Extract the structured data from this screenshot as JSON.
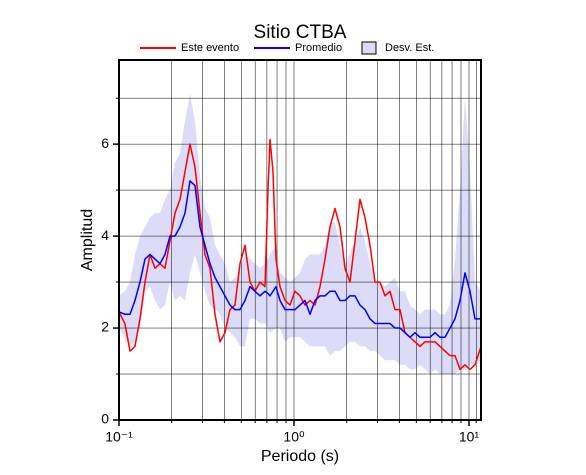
{
  "chart_data": {
    "type": "line",
    "title": "Sitio CTBA",
    "x_label": "Periodo (s)",
    "y_label": "Amplitud",
    "xscale": "log",
    "xlim": [
      0.1,
      11.71
    ],
    "ylim": [
      0,
      7.83
    ],
    "xticks": [
      {
        "value": 0.1,
        "label": "10⁻¹"
      },
      {
        "value": 1,
        "label": "10⁰"
      },
      {
        "value": 10,
        "label": "10¹"
      }
    ],
    "xminor": [
      0.2,
      0.3,
      0.4,
      0.5,
      0.6,
      0.7,
      0.8,
      0.9,
      2,
      3,
      4,
      5,
      6,
      7,
      8,
      9,
      11
    ],
    "yticks": [
      0,
      2,
      4,
      6
    ],
    "yminor": [
      1,
      3,
      5,
      7
    ],
    "grid": true,
    "x": [
      0.1,
      0.108,
      0.1156,
      0.1234,
      0.1318,
      0.1408,
      0.1504,
      0.1606,
      0.1715,
      0.1832,
      0.1956,
      0.2089,
      0.2232,
      0.2383,
      0.2545,
      0.2718,
      0.2903,
      0.31,
      0.3311,
      0.3536,
      0.3776,
      0.4033,
      0.4307,
      0.46,
      0.4913,
      0.5248,
      0.5604,
      0.5985,
      0.6392,
      0.6827,
      0.7103,
      0.7293,
      0.7586,
      0.7892,
      0.8318,
      0.8884,
      0.9487,
      1.013,
      1.082,
      1.156,
      1.234,
      1.318,
      1.408,
      1.504,
      1.606,
      1.715,
      1.832,
      1.956,
      2.089,
      2.232,
      2.383,
      2.545,
      2.718,
      2.903,
      3.1,
      3.311,
      3.536,
      3.776,
      4.033,
      4.307,
      4.6,
      4.913,
      5.248,
      5.604,
      5.985,
      6.392,
      6.827,
      7.293,
      7.789,
      8.318,
      8.884,
      9.487,
      10.13,
      10.82,
      11.71
    ],
    "series": [
      {
        "name": "Este evento",
        "color": "#ff0000",
        "values": [
          2.35,
          2.1,
          1.5,
          1.6,
          2.2,
          3.0,
          3.6,
          3.3,
          3.4,
          3.3,
          3.9,
          4.5,
          4.8,
          5.4,
          6.0,
          5.5,
          4.5,
          3.6,
          3.3,
          2.3,
          1.7,
          1.9,
          2.4,
          2.5,
          3.4,
          3.8,
          3.0,
          2.8,
          3.0,
          2.9,
          5.0,
          6.1,
          5.4,
          3.5,
          2.9,
          2.6,
          2.5,
          2.8,
          2.7,
          2.5,
          2.6,
          2.5,
          2.9,
          3.5,
          4.2,
          4.6,
          4.2,
          3.3,
          3.0,
          3.9,
          4.8,
          4.4,
          3.8,
          3.0,
          3.0,
          2.7,
          2.8,
          2.4,
          2.4,
          1.9,
          1.8,
          1.7,
          1.6,
          1.7,
          1.7,
          1.7,
          1.6,
          1.5,
          1.4,
          1.4,
          1.1,
          1.2,
          1.1,
          1.2,
          1.6
        ]
      },
      {
        "name": "Promedio",
        "color": "#0000ff",
        "values": [
          2.35,
          2.3,
          2.3,
          2.6,
          3.0,
          3.5,
          3.6,
          3.5,
          3.4,
          3.6,
          4.0,
          4.0,
          4.2,
          4.5,
          5.2,
          5.1,
          4.2,
          3.8,
          3.4,
          3.1,
          2.9,
          2.7,
          2.5,
          2.4,
          2.4,
          2.6,
          2.9,
          2.8,
          2.7,
          2.8,
          2.75,
          2.7,
          2.8,
          2.9,
          2.6,
          2.4,
          2.4,
          2.4,
          2.5,
          2.6,
          2.3,
          2.6,
          2.7,
          2.7,
          2.8,
          2.8,
          2.6,
          2.6,
          2.7,
          2.7,
          2.5,
          2.4,
          2.2,
          2.1,
          2.1,
          2.1,
          2.1,
          2.0,
          2.0,
          1.9,
          1.8,
          1.9,
          1.8,
          1.8,
          1.8,
          1.9,
          1.8,
          1.8,
          2.0,
          2.2,
          2.6,
          3.2,
          2.8,
          2.2,
          2.2
        ]
      }
    ],
    "band": {
      "name": "Desv. Est.",
      "color": "#dcdcf9",
      "upper": [
        2.7,
        2.8,
        3.0,
        3.6,
        4.0,
        4.2,
        4.4,
        4.5,
        4.5,
        4.8,
        5.0,
        5.6,
        5.8,
        6.5,
        7.1,
        6.5,
        5.3,
        4.6,
        4.4,
        3.8,
        3.6,
        3.4,
        3.0,
        3.1,
        3.3,
        3.6,
        3.5,
        3.4,
        3.3,
        3.4,
        3.5,
        3.6,
        3.7,
        3.8,
        3.2,
        3.1,
        3.0,
        3.1,
        3.2,
        3.5,
        3.6,
        3.6,
        3.6,
        3.8,
        4.3,
        4.3,
        3.8,
        3.4,
        3.6,
        3.9,
        4.2,
        3.9,
        3.4,
        3.0,
        3.0,
        2.9,
        3.0,
        3.1,
        2.8,
        2.8,
        2.5,
        2.4,
        2.3,
        2.4,
        2.4,
        2.4,
        2.3,
        2.3,
        2.5,
        3.5,
        5.0,
        7.0,
        5.5,
        3.0,
        2.8
      ],
      "lower": [
        2.0,
        1.8,
        1.6,
        1.7,
        2.0,
        2.8,
        2.9,
        2.6,
        2.4,
        2.5,
        3.0,
        2.6,
        2.7,
        2.6,
        3.2,
        3.6,
        3.2,
        2.8,
        2.5,
        2.4,
        2.3,
        2.0,
        1.9,
        1.8,
        1.6,
        1.6,
        2.2,
        2.2,
        2.1,
        2.1,
        2.0,
        1.9,
        1.95,
        2.0,
        2.0,
        1.7,
        1.8,
        1.8,
        1.8,
        1.7,
        1.6,
        1.6,
        1.6,
        1.6,
        1.4,
        1.5,
        1.5,
        1.6,
        1.7,
        1.7,
        1.6,
        1.6,
        1.5,
        1.5,
        1.4,
        1.3,
        1.3,
        1.3,
        1.2,
        1.2,
        1.1,
        1.1,
        1.2,
        1.1,
        1.0,
        1.1,
        1.0,
        1.0,
        1.0,
        1.0,
        1.1,
        1.1,
        1.2,
        1.2,
        1.3
      ]
    }
  }
}
